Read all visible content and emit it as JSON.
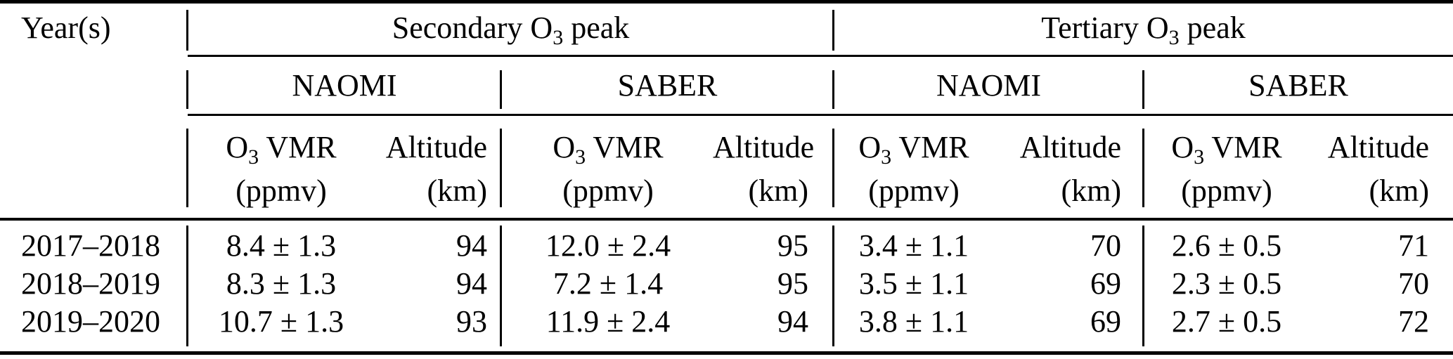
{
  "table": {
    "columns": {
      "year_header": "Year(s)",
      "group_headers": [
        {
          "pre": "Secondary O",
          "sub": "3",
          "post": " peak"
        },
        {
          "pre": "Tertiary O",
          "sub": "3",
          "post": " peak"
        }
      ],
      "instruments": [
        "NAOMI",
        "SABER",
        "NAOMI",
        "SABER"
      ],
      "vmr_header": {
        "pre": "O",
        "sub": "3",
        "post": " VMR"
      },
      "vmr_unit": "(ppmv)",
      "alt_header": "Altitude",
      "alt_unit": "(km)"
    },
    "rows": [
      {
        "year": "2017–2018",
        "values": [
          "8.4 ± 1.3",
          "94",
          "12.0 ± 2.4",
          "95",
          "3.4 ± 1.1",
          "70",
          "2.6 ± 0.5",
          "71"
        ]
      },
      {
        "year": "2018–2019",
        "values": [
          "8.3 ± 1.3",
          "94",
          "7.2 ± 1.4",
          "95",
          "3.5 ± 1.1",
          "69",
          "2.3 ± 0.5",
          "70"
        ]
      },
      {
        "year": "2019–2020",
        "values": [
          "10.7 ± 1.3",
          "93",
          "11.9 ± 2.4",
          "94",
          "3.8 ± 1.1",
          "69",
          "2.7 ± 0.5",
          "72"
        ]
      }
    ],
    "colors": {
      "text": "#000000",
      "background": "#ffffff",
      "rule": "#000000"
    }
  }
}
